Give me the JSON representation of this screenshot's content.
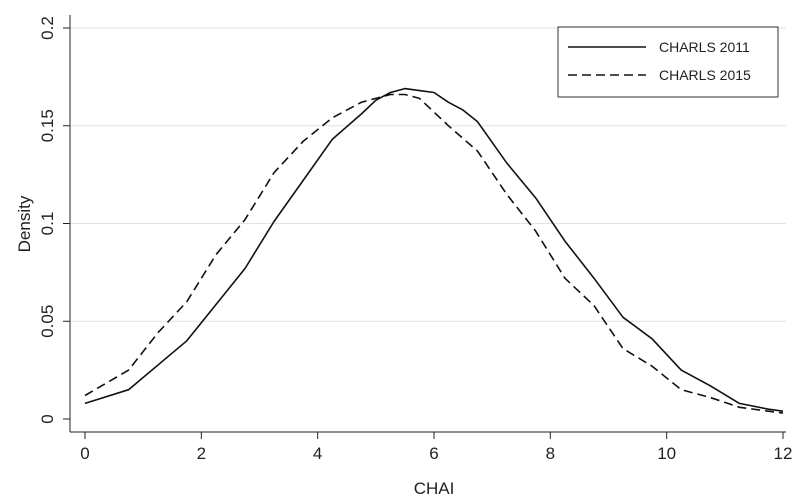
{
  "chart_data": {
    "type": "line",
    "xlabel": "CHAI",
    "ylabel": "Density",
    "xlim": [
      0,
      12
    ],
    "ylim": [
      0,
      0.2
    ],
    "xticks": [
      {
        "value": 0,
        "label": "0"
      },
      {
        "value": 2,
        "label": "2"
      },
      {
        "value": 4,
        "label": "4"
      },
      {
        "value": 6,
        "label": "6"
      },
      {
        "value": 8,
        "label": "8"
      },
      {
        "value": 10,
        "label": "10"
      },
      {
        "value": 12,
        "label": "12"
      }
    ],
    "yticks": [
      {
        "value": 0,
        "label": "0"
      },
      {
        "value": 0.05,
        "label": "0.05"
      },
      {
        "value": 0.1,
        "label": "0.1"
      },
      {
        "value": 0.15,
        "label": "0.15"
      },
      {
        "value": 0.2,
        "label": "0.2"
      }
    ],
    "grid": "horizontal",
    "legend_position": "top-right",
    "series": [
      {
        "name": "CHARLS 2011",
        "style": "solid",
        "color": "#111111",
        "x": [
          0,
          0.75,
          1.75,
          2.75,
          3.25,
          3.75,
          4.25,
          4.75,
          5.0,
          5.25,
          5.5,
          5.75,
          6.0,
          6.25,
          6.5,
          6.75,
          7.25,
          7.75,
          8.25,
          8.75,
          9.25,
          9.75,
          10.25,
          10.75,
          11.25,
          11.75,
          12.0
        ],
        "y": [
          0.008,
          0.015,
          0.04,
          0.077,
          0.101,
          0.122,
          0.143,
          0.156,
          0.163,
          0.167,
          0.169,
          0.168,
          0.167,
          0.162,
          0.158,
          0.152,
          0.131,
          0.113,
          0.091,
          0.072,
          0.052,
          0.041,
          0.025,
          0.017,
          0.008,
          0.005,
          0.004
        ]
      },
      {
        "name": "CHARLS 2015",
        "style": "dashed",
        "color": "#111111",
        "x": [
          0,
          0.75,
          1.25,
          1.75,
          2.25,
          2.75,
          3.25,
          3.75,
          4.25,
          4.75,
          5.0,
          5.25,
          5.5,
          5.75,
          6.25,
          6.75,
          7.25,
          7.75,
          8.25,
          8.75,
          9.25,
          9.75,
          10.25,
          10.75,
          11.25,
          11.75,
          12.0
        ],
        "y": [
          0.012,
          0.025,
          0.044,
          0.06,
          0.084,
          0.102,
          0.126,
          0.142,
          0.154,
          0.162,
          0.164,
          0.166,
          0.166,
          0.164,
          0.15,
          0.137,
          0.115,
          0.096,
          0.072,
          0.058,
          0.036,
          0.027,
          0.015,
          0.011,
          0.006,
          0.004,
          0.003
        ]
      }
    ]
  }
}
